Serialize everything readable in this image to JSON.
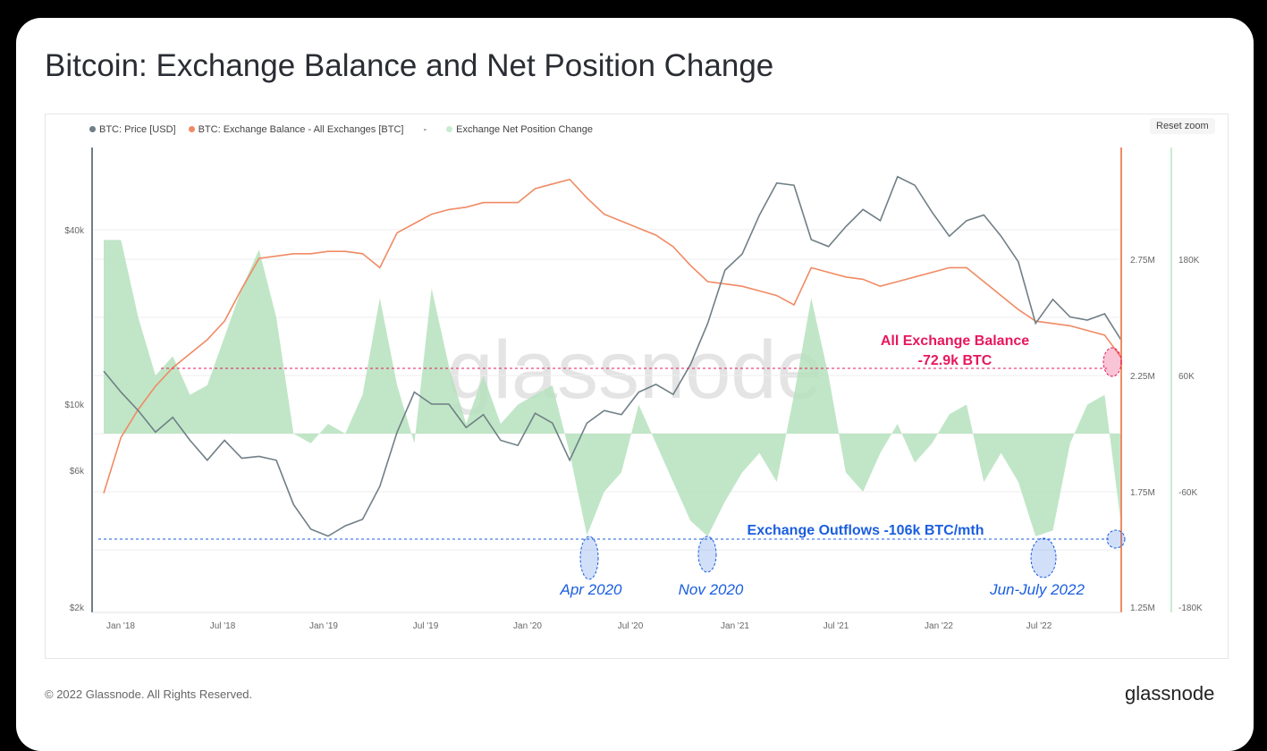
{
  "title": "Bitcoin: Exchange Balance and Net Position Change",
  "reset_zoom": "Reset zoom",
  "footer": "© 2022 Glassnode. All Rights Reserved.",
  "brand": "glassnode",
  "watermark": "glassnode",
  "colors": {
    "price": "#6f7f86",
    "balance": "#f08a63",
    "net": "#b5e2bd",
    "annot_red": "#e8175d",
    "annot_blue": "#1a5ee0"
  },
  "chart_data": {
    "type": "line",
    "title": "Bitcoin: Exchange Balance and Net Position Change",
    "legend": [
      "BTC: Price [USD]",
      "BTC: Exchange Balance - All Exchanges [BTC]",
      "-",
      "Exchange Net Position Change"
    ],
    "legend_placement": "top-left",
    "x_ticks": [
      "Jan '18",
      "Jul '18",
      "Jan '19",
      "Jul '19",
      "Jan '20",
      "Jul '20",
      "Jan '21",
      "Jul '21",
      "Jan '22",
      "Jul '22"
    ],
    "y_left_ticks": [
      "$2k",
      "$6k",
      "$10k",
      "$40k"
    ],
    "y_left_scale": "log",
    "y_left_range": [
      2000,
      77000
    ],
    "y_right1_ticks": [
      "1.25M",
      "1.75M",
      "2.25M",
      "2.75M"
    ],
    "y_right1_range": [
      1.25,
      3.25
    ],
    "y_right2_ticks": [
      "-180K",
      "-60K",
      "60K",
      "180K"
    ],
    "y_right2_range": [
      -180,
      300
    ],
    "months": [
      "2017-12",
      "2018-01",
      "2018-02",
      "2018-03",
      "2018-04",
      "2018-05",
      "2018-06",
      "2018-07",
      "2018-08",
      "2018-09",
      "2018-10",
      "2018-11",
      "2018-12",
      "2019-01",
      "2019-02",
      "2019-03",
      "2019-04",
      "2019-05",
      "2019-06",
      "2019-07",
      "2019-08",
      "2019-09",
      "2019-10",
      "2019-11",
      "2019-12",
      "2020-01",
      "2020-02",
      "2020-03",
      "2020-04",
      "2020-05",
      "2020-06",
      "2020-07",
      "2020-08",
      "2020-09",
      "2020-10",
      "2020-11",
      "2020-12",
      "2021-01",
      "2021-02",
      "2021-03",
      "2021-04",
      "2021-05",
      "2021-06",
      "2021-07",
      "2021-08",
      "2021-09",
      "2021-10",
      "2021-11",
      "2021-12",
      "2022-01",
      "2022-02",
      "2022-03",
      "2022-04",
      "2022-05",
      "2022-06",
      "2022-07",
      "2022-08",
      "2022-09",
      "2022-10",
      "2022-11"
    ],
    "series": [
      {
        "name": "BTC: Price [USD]",
        "values": [
          13000,
          11000,
          9500,
          8000,
          9000,
          7500,
          6400,
          7500,
          6500,
          6600,
          6400,
          4500,
          3700,
          3500,
          3800,
          4000,
          5200,
          8000,
          11000,
          10000,
          10000,
          8300,
          9200,
          7500,
          7200,
          9300,
          8600,
          6400,
          8600,
          9500,
          9200,
          11000,
          11700,
          10800,
          13700,
          19000,
          29000,
          33000,
          45000,
          58000,
          57000,
          37000,
          35000,
          41000,
          47000,
          43000,
          61000,
          57000,
          46000,
          38000,
          43000,
          45000,
          38000,
          31000,
          19000,
          23000,
          20000,
          19500,
          20500,
          16500
        ]
      },
      {
        "name": "BTC: Exchange Balance - All Exchanges [BTC] (M)",
        "values": [
          1.74,
          1.98,
          2.1,
          2.2,
          2.28,
          2.34,
          2.4,
          2.48,
          2.62,
          2.75,
          2.76,
          2.77,
          2.77,
          2.78,
          2.78,
          2.77,
          2.71,
          2.86,
          2.9,
          2.94,
          2.96,
          2.97,
          2.99,
          2.99,
          2.99,
          3.05,
          3.07,
          3.09,
          3.01,
          2.94,
          2.91,
          2.88,
          2.85,
          2.8,
          2.72,
          2.65,
          2.64,
          2.63,
          2.61,
          2.59,
          2.55,
          2.71,
          2.69,
          2.67,
          2.66,
          2.63,
          2.65,
          2.67,
          2.69,
          2.71,
          2.71,
          2.65,
          2.59,
          2.53,
          2.48,
          2.47,
          2.46,
          2.44,
          2.42,
          2.32
        ]
      },
      {
        "name": "Exchange Net Position Change (K BTC/mth)",
        "values": [
          200,
          200,
          120,
          60,
          80,
          40,
          50,
          100,
          150,
          190,
          120,
          0,
          -10,
          10,
          0,
          40,
          140,
          50,
          -10,
          150,
          70,
          10,
          60,
          10,
          30,
          40,
          50,
          -20,
          -105,
          -60,
          -40,
          30,
          -10,
          -50,
          -90,
          -106,
          -70,
          -40,
          -20,
          -50,
          40,
          140,
          60,
          -40,
          -60,
          -20,
          10,
          -30,
          -10,
          20,
          30,
          -50,
          -20,
          -50,
          -106,
          -100,
          -10,
          30,
          40,
          -100
        ]
      }
    ],
    "annotations": {
      "balance_label": "All Exchange Balance",
      "balance_value": "-72.9k BTC",
      "outflows": "Exchange Outflows -106k BTC/mth",
      "events": [
        "Apr 2020",
        "Nov 2020",
        "Jun-July 2022"
      ]
    }
  }
}
